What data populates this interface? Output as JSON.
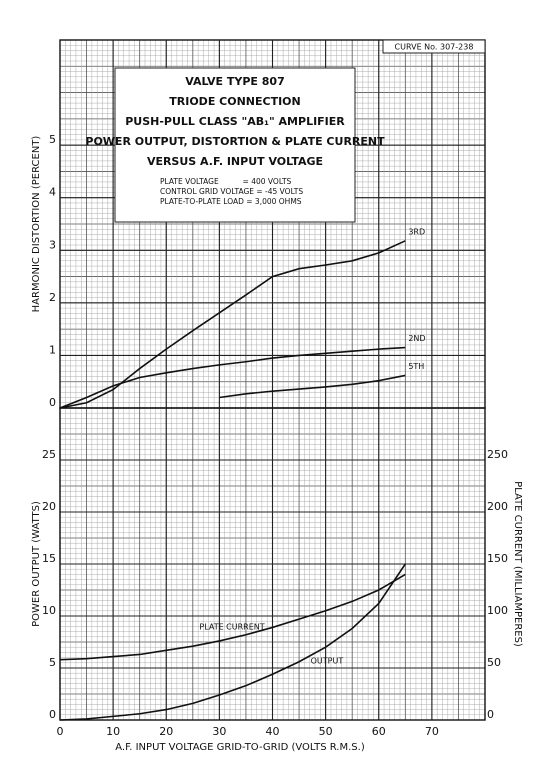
{
  "chart_data": [
    {
      "type": "line",
      "curve_number": "CURVE No. 307-238",
      "title_lines": [
        "VALVE TYPE 807",
        "TRIODE CONNECTION",
        "PUSH-PULL CLASS \"AB₁\"   AMPLIFIER",
        "POWER OUTPUT, DISTORTION & PLATE CURRENT",
        "VERSUS A.F. INPUT VOLTAGE"
      ],
      "notes": [
        "PLATE VOLTAGE          = 400 VOLTS",
        "CONTROL GRID VOLTAGE = -45 VOLTS",
        "PLATE-TO-PLATE LOAD = 3,000 OHMS"
      ],
      "ylabel": "HARMONIC DISTORTION (PERCENT)",
      "xlim": [
        0,
        80
      ],
      "ylim": [
        0,
        7
      ],
      "yticks": [
        0,
        1,
        2,
        3,
        4,
        5
      ],
      "grid": true,
      "x": [
        0,
        5,
        10,
        15,
        20,
        25,
        30,
        35,
        40,
        45,
        50,
        55,
        60,
        65
      ],
      "series": [
        {
          "name": "3RD",
          "color": "#111111",
          "values": [
            0,
            0.1,
            0.35,
            0.75,
            1.12,
            1.47,
            1.81,
            2.15,
            2.5,
            2.65,
            2.72,
            2.8,
            2.95,
            3.18
          ]
        },
        {
          "name": "2ND",
          "color": "#111111",
          "values": [
            0,
            0.2,
            0.42,
            0.58,
            0.67,
            0.75,
            0.82,
            0.88,
            0.95,
            1.0,
            1.04,
            1.08,
            1.12,
            1.15
          ]
        },
        {
          "name": "5TH",
          "color": "#111111",
          "values": [
            null,
            null,
            null,
            null,
            null,
            null,
            0.2,
            0.27,
            0.32,
            0.36,
            0.4,
            0.45,
            0.52,
            0.62
          ]
        }
      ]
    },
    {
      "type": "line",
      "ylabel": "POWER OUTPUT (WATTS)",
      "y2label": "PLATE CURRENT (MILLIAMPERES)",
      "xlabel": "A.F. INPUT VOLTAGE GRID-TO-GRID (VOLTS R.M.S.)",
      "xlim": [
        0,
        80
      ],
      "xticks": [
        0,
        10,
        20,
        30,
        40,
        50,
        60,
        70
      ],
      "ylim": [
        0,
        30
      ],
      "yticks": [
        0,
        5,
        10,
        15,
        20,
        25
      ],
      "y2lim": [
        0,
        300
      ],
      "y2ticks": [
        0,
        50,
        100,
        150,
        200,
        250
      ],
      "grid": true,
      "x": [
        0,
        5,
        10,
        15,
        20,
        25,
        30,
        35,
        40,
        45,
        50,
        55,
        60,
        65
      ],
      "series": [
        {
          "name": "PLATE CURRENT",
          "color": "#111111",
          "axis": "y2",
          "values": [
            58,
            59,
            61,
            63,
            67,
            71,
            76,
            82,
            89,
            97,
            105,
            114,
            125,
            140
          ]
        },
        {
          "name": "OUTPUT",
          "color": "#111111",
          "values": [
            0,
            0.1,
            0.35,
            0.6,
            1.0,
            1.6,
            2.4,
            3.3,
            4.4,
            5.6,
            7.0,
            8.8,
            11.2,
            15
          ]
        }
      ]
    }
  ]
}
